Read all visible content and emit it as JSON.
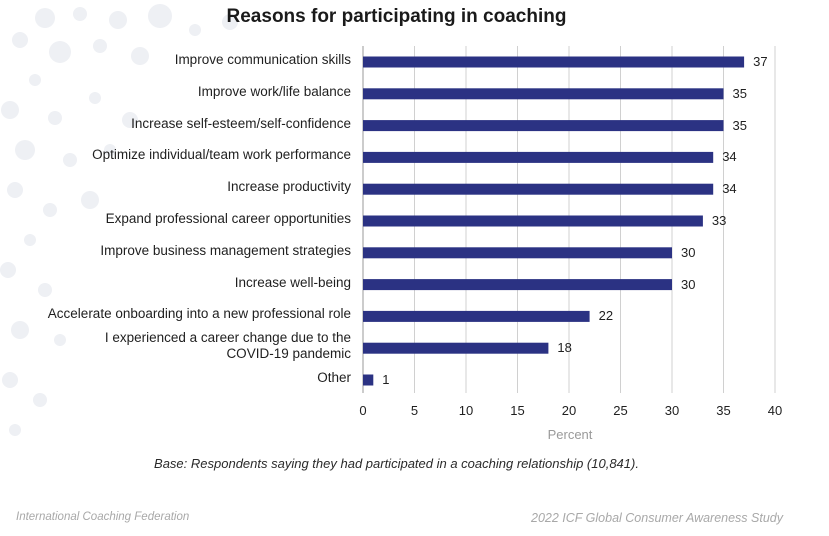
{
  "colors": {
    "bar": "#2b3283",
    "grid": "#d0d0d0",
    "axis": "#999999"
  },
  "chart_data": {
    "type": "bar",
    "orientation": "horizontal",
    "title": "Reasons for participating in coaching",
    "xlabel": "Percent",
    "ylabel": "",
    "xlim": [
      0,
      40
    ],
    "xticks": [
      0,
      5,
      10,
      15,
      20,
      25,
      30,
      35,
      40
    ],
    "grid": true,
    "categories": [
      "Improve communication skills",
      "Improve work/life balance",
      "Increase self-esteem/self-confidence",
      "Optimize individual/team work performance",
      "Increase productivity",
      "Expand professional career opportunities",
      "Improve business management strategies",
      "Increase well-being",
      "Accelerate onboarding into a new professional role",
      "I experienced a career change due to the COVID-19 pandemic",
      "Other"
    ],
    "values": [
      37,
      35,
      35,
      34,
      34,
      33,
      30,
      30,
      22,
      18,
      1
    ],
    "value_labels": [
      "37",
      "35",
      "35",
      "34",
      "34",
      "33",
      "30",
      "30",
      "22",
      "18",
      "1"
    ]
  },
  "category_lines": [
    [
      "Improve communication skills"
    ],
    [
      "Improve work/life balance"
    ],
    [
      "Increase self-esteem/self-confidence"
    ],
    [
      "Optimize individual/team work performance"
    ],
    [
      "Increase productivity"
    ],
    [
      "Expand professional career opportunities"
    ],
    [
      "Improve business management strategies"
    ],
    [
      "Increase well-being"
    ],
    [
      "Accelerate onboarding into a new professional role"
    ],
    [
      "I experienced a career change due to the",
      "COVID-19 pandemic"
    ],
    [
      "Other"
    ]
  ],
  "note": "Base: Respondents saying they had participated in a coaching relationship (10,841).",
  "footer": {
    "left": "International Coaching Federation",
    "right": "2022 ICF Global Consumer Awareness Study"
  }
}
